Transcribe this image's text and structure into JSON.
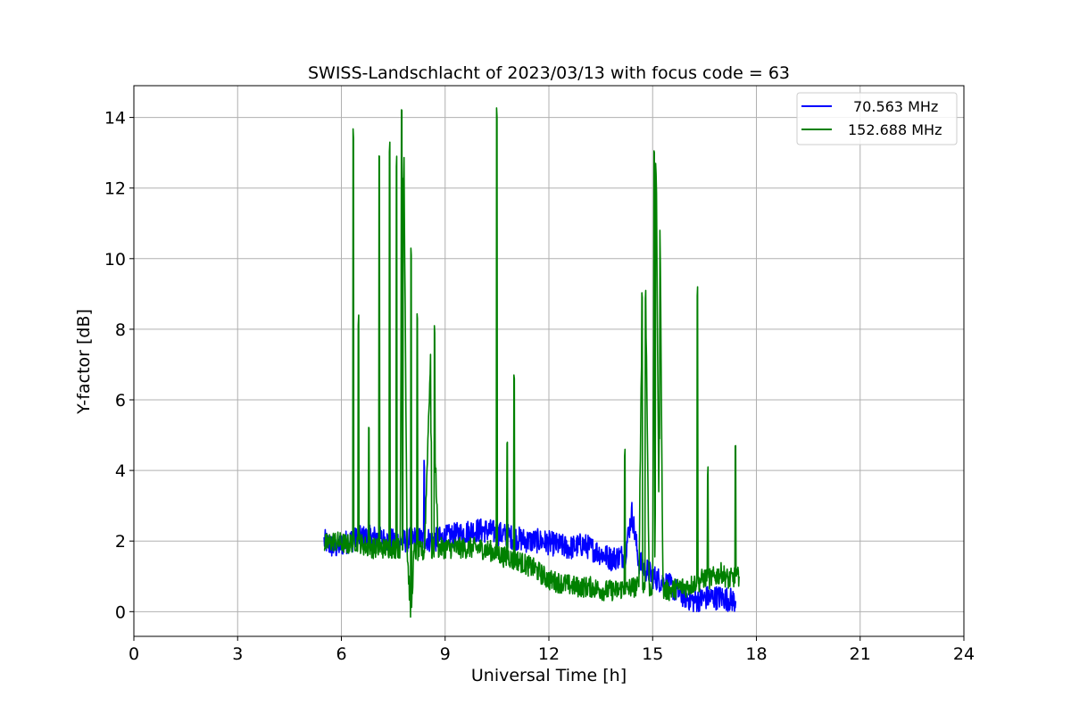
{
  "chart_data": {
    "type": "line",
    "title": "SWISS-Landschlacht of 2023/03/13 with focus code = 63",
    "xlabel": "Universal Time [h]",
    "ylabel": "Y-factor [dB]",
    "xlim": [
      0,
      24
    ],
    "ylim": [
      -0.7,
      14.9
    ],
    "xticks": [
      0,
      3,
      6,
      9,
      12,
      15,
      18,
      21,
      24
    ],
    "yticks": [
      0,
      2,
      4,
      6,
      8,
      10,
      12,
      14
    ],
    "grid": true,
    "legend_position": "top-right",
    "series": [
      {
        "name": "70.563 MHz",
        "color": "#0000ff",
        "x": [
          5.5,
          5.8,
          6.2,
          6.6,
          7.0,
          7.4,
          7.8,
          8.2,
          8.4,
          8.6,
          9.0,
          9.4,
          9.8,
          10.2,
          10.6,
          11.0,
          11.4,
          11.8,
          12.2,
          12.6,
          13.0,
          13.4,
          13.8,
          14.2,
          14.4,
          14.6,
          15.0,
          15.4,
          15.8,
          16.0,
          16.2,
          16.6,
          17.0,
          17.4
        ],
        "y": [
          2.0,
          1.8,
          2.0,
          2.1,
          2.1,
          2.0,
          2.0,
          2.1,
          4.1,
          2.0,
          2.1,
          2.2,
          2.3,
          2.3,
          2.2,
          2.1,
          2.0,
          2.0,
          1.9,
          1.8,
          1.9,
          1.7,
          1.5,
          1.6,
          2.8,
          1.4,
          1.0,
          0.8,
          0.5,
          0.4,
          0.3,
          0.4,
          0.4,
          0.3
        ]
      },
      {
        "name": "152.688 MHz",
        "color": "#008000",
        "x": [
          5.5,
          5.8,
          6.2,
          6.35,
          6.4,
          6.5,
          6.6,
          6.8,
          6.9,
          7.1,
          7.3,
          7.4,
          7.5,
          7.6,
          7.7,
          7.75,
          7.8,
          7.9,
          8.0,
          8.02,
          8.1,
          8.2,
          8.4,
          8.6,
          8.7,
          8.8,
          9.0,
          9.5,
          10.0,
          10.4,
          10.5,
          10.6,
          10.8,
          10.9,
          11.0,
          11.2,
          11.6,
          12.0,
          12.4,
          12.8,
          13.2,
          13.6,
          14.0,
          14.2,
          14.4,
          14.6,
          14.7,
          14.8,
          14.9,
          15.0,
          15.05,
          15.1,
          15.2,
          15.3,
          15.5,
          15.8,
          16.0,
          16.2,
          16.3,
          16.4,
          16.6,
          16.8,
          17.0,
          17.2,
          17.4,
          17.5
        ],
        "y": [
          1.9,
          2.0,
          1.9,
          13.4,
          2.0,
          8.4,
          1.9,
          5.2,
          1.8,
          12.9,
          1.8,
          13.3,
          1.8,
          12.9,
          1.8,
          14.2,
          12.3,
          1.8,
          0.0,
          10.1,
          1.7,
          8.3,
          1.7,
          4.8,
          7.9,
          1.8,
          1.8,
          1.8,
          1.8,
          1.7,
          14.0,
          1.6,
          4.8,
          1.5,
          6.6,
          1.4,
          1.2,
          0.9,
          0.8,
          0.7,
          0.7,
          0.6,
          0.6,
          4.6,
          0.7,
          0.7,
          8.9,
          9.1,
          0.7,
          0.7,
          13.0,
          12.4,
          4.9,
          0.6,
          0.6,
          0.7,
          0.7,
          0.8,
          9.2,
          0.9,
          4.1,
          1.0,
          1.1,
          0.9,
          4.7,
          1.0
        ]
      }
    ]
  }
}
